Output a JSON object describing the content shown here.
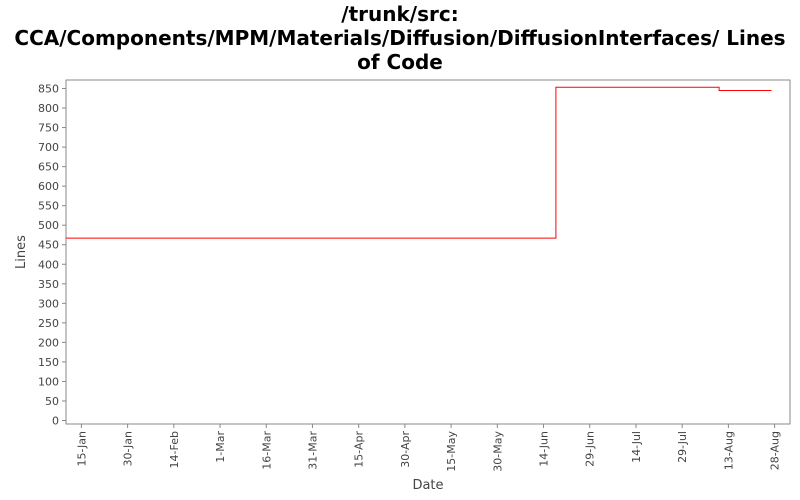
{
  "chart_data": {
    "type": "line",
    "title_lines": [
      "/trunk/src:",
      "CCA/Components/MPM/Materials/Diffusion/DiffusionInterfaces/ Lines",
      "of Code"
    ],
    "xlabel": "Date",
    "ylabel": "Lines",
    "x_ticks": [
      "15-Jan",
      "30-Jan",
      "14-Feb",
      "1-Mar",
      "16-Mar",
      "31-Mar",
      "15-Apr",
      "30-Apr",
      "15-May",
      "30-May",
      "14-Jun",
      "29-Jun",
      "14-Jul",
      "29-Jul",
      "13-Aug",
      "28-Aug"
    ],
    "y_ticks": [
      0,
      50,
      100,
      150,
      200,
      250,
      300,
      350,
      400,
      450,
      500,
      550,
      600,
      650,
      700,
      750,
      800,
      850
    ],
    "ylim": [
      0,
      870
    ],
    "xlim": [
      "2018-01-10",
      "2018-09-02"
    ],
    "grid": false,
    "line_color": "#ff0000",
    "series": [
      {
        "step": true,
        "x": [
          "2018-01-10",
          "2018-06-18",
          "2018-06-18",
          "2018-08-10",
          "2018-08-10",
          "2018-08-27"
        ],
        "values": [
          467,
          467,
          853,
          853,
          845,
          845
        ]
      }
    ]
  }
}
